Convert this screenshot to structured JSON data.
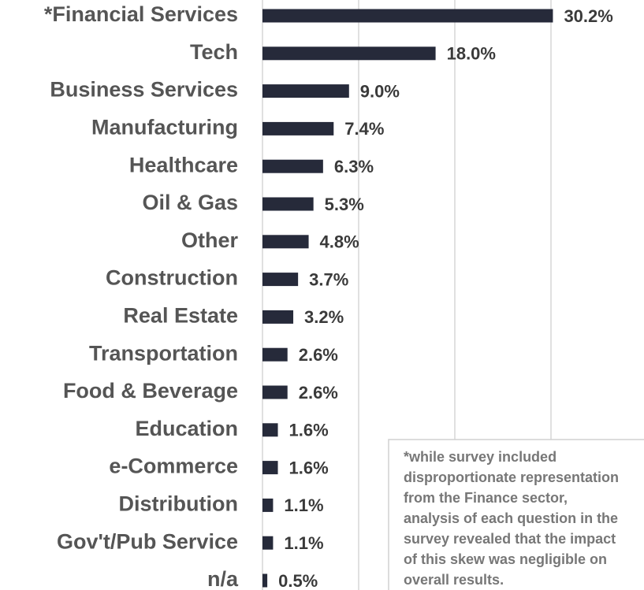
{
  "chart_data": {
    "type": "barh",
    "categories": [
      "*Financial Services",
      "Tech",
      "Business Services",
      "Manufacturing",
      "Healthcare",
      "Oil & Gas",
      "Other",
      "Construction",
      "Real Estate",
      "Transportation",
      "Food & Beverage",
      "Education",
      "e-Commerce",
      "Distribution",
      "Gov't/Pub Service",
      "n/a"
    ],
    "values": [
      30.2,
      18.0,
      9.0,
      7.4,
      6.3,
      5.3,
      4.8,
      3.7,
      3.2,
      2.6,
      2.6,
      1.6,
      1.6,
      1.1,
      1.1,
      0.5
    ],
    "value_labels": [
      "30.2%",
      "18.0%",
      "9.0%",
      "7.4%",
      "6.3%",
      "5.3%",
      "4.8%",
      "3.7%",
      "3.2%",
      "2.6%",
      "2.6%",
      "1.6%",
      "1.6%",
      "1.1%",
      "1.1%",
      "0.5%"
    ],
    "color": "#262a3a",
    "xlim": [
      0,
      40
    ],
    "xticks": [
      0,
      10,
      20,
      30
    ],
    "grid": true,
    "annotation": [
      "*while survey included",
      "disproportionate representation",
      "from the Finance sector,",
      "analysis of each question in the",
      "survey revealed that the impact",
      "of this skew was negligible on",
      "overall results."
    ]
  }
}
